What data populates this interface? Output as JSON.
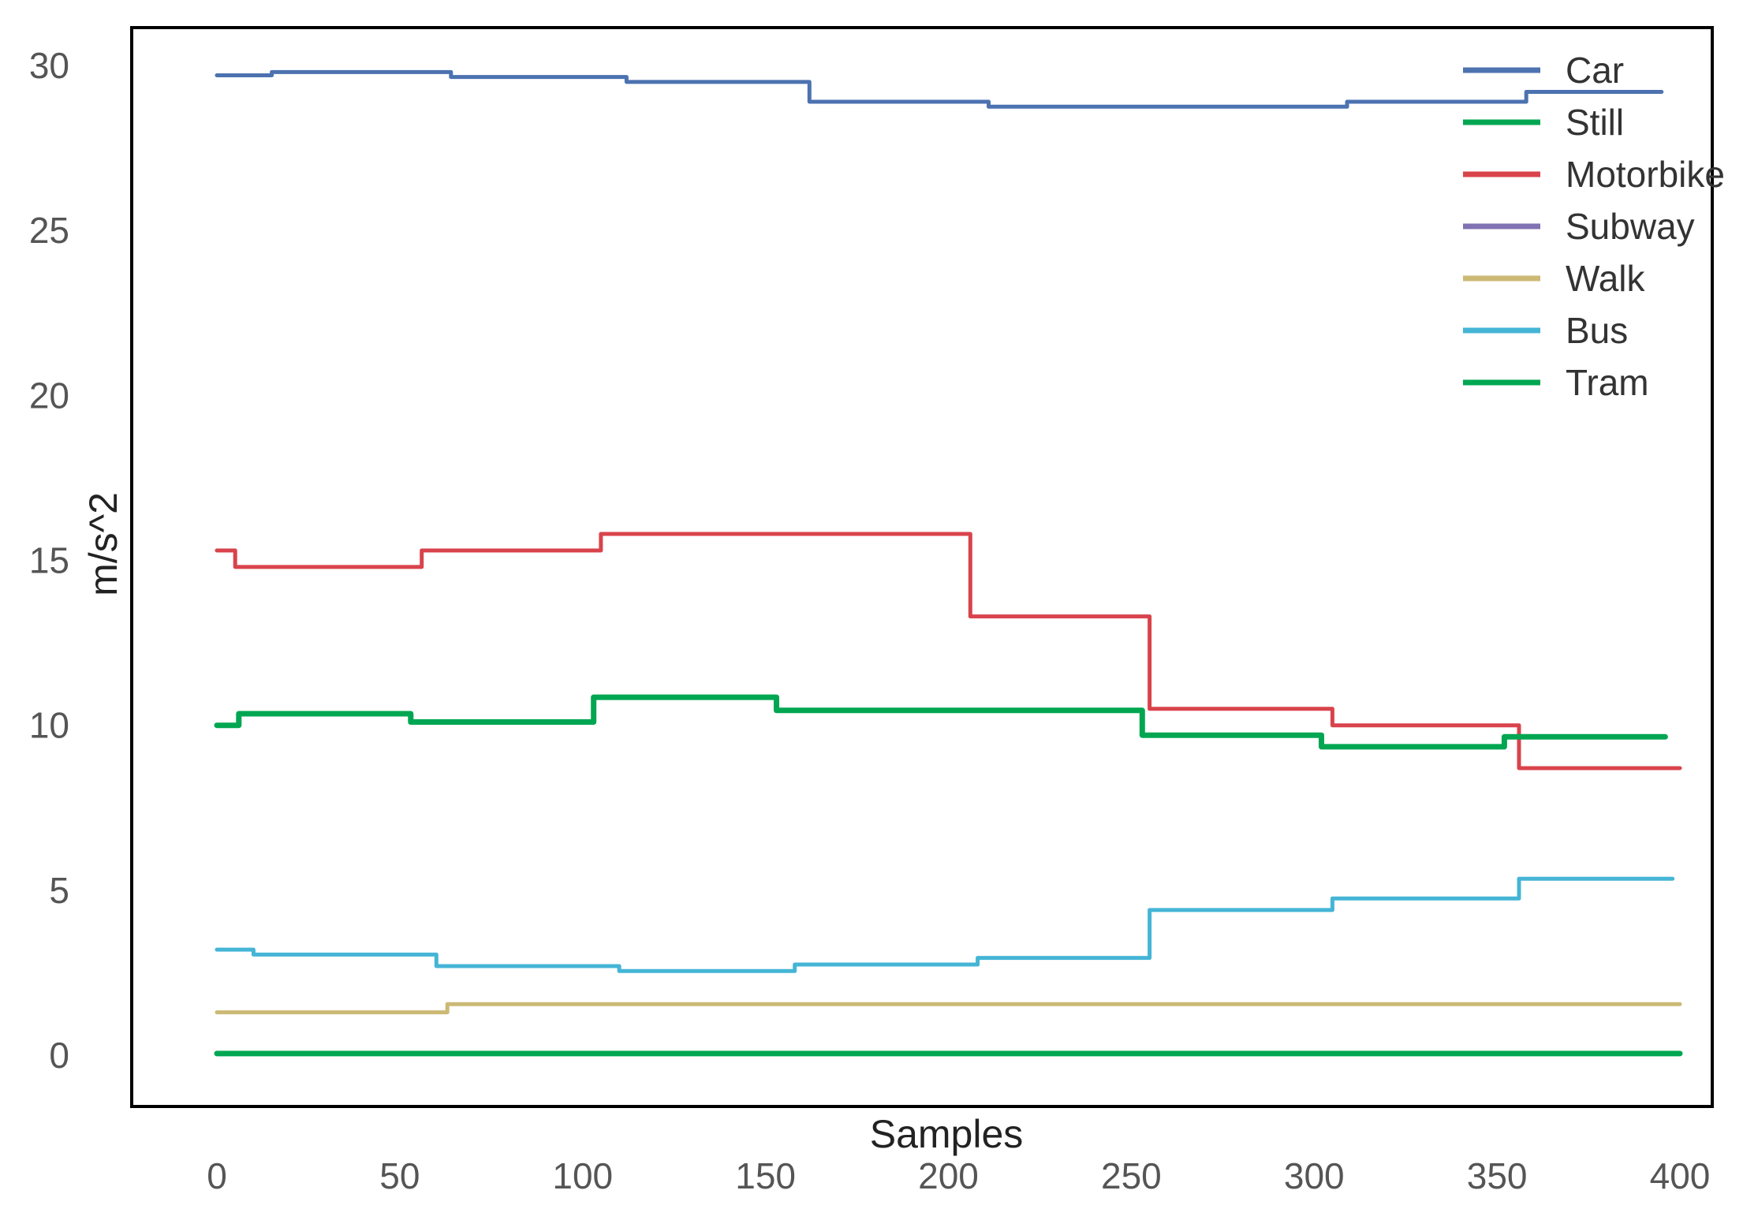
{
  "chart_data": {
    "type": "line",
    "title": "",
    "xlabel": "Samples",
    "ylabel": "m/s^2",
    "xlim": [
      0,
      400
    ],
    "ylim": [
      -1.5,
      31.2
    ],
    "xticks": [
      0,
      50,
      100,
      150,
      200,
      250,
      300,
      350,
      400
    ],
    "yticks": [
      0,
      5,
      10,
      15,
      20,
      25,
      30
    ],
    "grid": false,
    "legend_position": "top-right",
    "series": [
      {
        "name": "Car",
        "color": "#4c72b0",
        "points": [
          [
            0,
            29.7
          ],
          [
            15,
            29.7
          ],
          [
            15,
            29.8
          ],
          [
            64,
            29.8
          ],
          [
            64,
            29.65
          ],
          [
            112,
            29.65
          ],
          [
            112,
            29.5
          ],
          [
            162,
            29.5
          ],
          [
            162,
            28.9
          ],
          [
            211,
            28.9
          ],
          [
            211,
            28.75
          ],
          [
            309,
            28.75
          ],
          [
            309,
            28.9
          ],
          [
            358,
            28.9
          ],
          [
            358,
            29.2
          ],
          [
            395,
            29.2
          ]
        ]
      },
      {
        "name": "Still",
        "color": "#00a651",
        "points": [
          [
            0,
            0.05
          ],
          [
            400,
            0.05
          ]
        ]
      },
      {
        "name": "Motorbike",
        "color": "#d9434b",
        "points": [
          [
            0,
            15.3
          ],
          [
            5,
            15.3
          ],
          [
            5,
            14.8
          ],
          [
            56,
            14.8
          ],
          [
            56,
            15.3
          ],
          [
            105,
            15.3
          ],
          [
            105,
            15.8
          ],
          [
            206,
            15.8
          ],
          [
            206,
            13.3
          ],
          [
            255,
            13.3
          ],
          [
            255,
            10.5
          ],
          [
            305,
            10.5
          ],
          [
            305,
            10.0
          ],
          [
            356,
            10.0
          ],
          [
            356,
            8.7
          ],
          [
            400,
            8.7
          ]
        ]
      },
      {
        "name": "Subway",
        "color": "#8172b2",
        "points": []
      },
      {
        "name": "Walk",
        "color": "#ccb974",
        "points": [
          [
            0,
            1.3
          ],
          [
            63,
            1.3
          ],
          [
            63,
            1.55
          ],
          [
            400,
            1.55
          ]
        ]
      },
      {
        "name": "Bus",
        "color": "#45b5d6",
        "points": [
          [
            0,
            3.2
          ],
          [
            10,
            3.2
          ],
          [
            10,
            3.05
          ],
          [
            60,
            3.05
          ],
          [
            60,
            2.7
          ],
          [
            110,
            2.7
          ],
          [
            110,
            2.55
          ],
          [
            158,
            2.55
          ],
          [
            158,
            2.75
          ],
          [
            208,
            2.75
          ],
          [
            208,
            2.95
          ],
          [
            255,
            2.95
          ],
          [
            255,
            4.4
          ],
          [
            305,
            4.4
          ],
          [
            305,
            4.75
          ],
          [
            356,
            4.75
          ],
          [
            356,
            5.35
          ],
          [
            398,
            5.35
          ]
        ]
      },
      {
        "name": "Tram",
        "color": "#00a651",
        "points": [
          [
            0,
            10.0
          ],
          [
            6,
            10.0
          ],
          [
            6,
            10.35
          ],
          [
            53,
            10.35
          ],
          [
            53,
            10.1
          ],
          [
            103,
            10.1
          ],
          [
            103,
            10.85
          ],
          [
            153,
            10.85
          ],
          [
            153,
            10.45
          ],
          [
            253,
            10.45
          ],
          [
            253,
            9.7
          ],
          [
            302,
            9.7
          ],
          [
            302,
            9.35
          ],
          [
            352,
            9.35
          ],
          [
            352,
            9.65
          ],
          [
            396,
            9.65
          ]
        ]
      }
    ]
  }
}
